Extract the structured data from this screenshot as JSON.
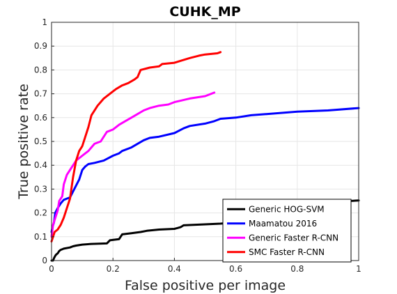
{
  "chart_data": {
    "type": "line",
    "title": "CUHK_MP",
    "xlabel": "False positive per image",
    "ylabel": "True positive rate",
    "xlim": [
      0,
      1
    ],
    "ylim": [
      0,
      1
    ],
    "xticks": [
      0,
      0.2,
      0.4,
      0.6,
      0.8,
      1
    ],
    "xtick_labels": [
      "0",
      "0.2",
      "0.4",
      "0.6",
      "0.8",
      "1"
    ],
    "yticks": [
      0,
      0.1,
      0.2,
      0.3,
      0.4,
      0.5,
      0.6,
      0.7,
      0.8,
      0.9,
      1
    ],
    "ytick_labels": [
      "0",
      "0.1",
      "0.2",
      "0.3",
      "0.4",
      "0.5",
      "0.6",
      "0.7",
      "0.8",
      "0.9",
      "1"
    ],
    "grid": true,
    "legend_position": "bottom-right",
    "series": [
      {
        "name": "Generic HOG-SVM",
        "color": "#000000",
        "points": [
          [
            0,
            0
          ],
          [
            0.005,
            0
          ],
          [
            0.008,
            0.01
          ],
          [
            0.012,
            0.02
          ],
          [
            0.015,
            0.025
          ],
          [
            0.02,
            0.03
          ],
          [
            0.025,
            0.04
          ],
          [
            0.03,
            0.045
          ],
          [
            0.04,
            0.05
          ],
          [
            0.06,
            0.055
          ],
          [
            0.07,
            0.06
          ],
          [
            0.08,
            0.063
          ],
          [
            0.1,
            0.067
          ],
          [
            0.13,
            0.07
          ],
          [
            0.18,
            0.072
          ],
          [
            0.19,
            0.085
          ],
          [
            0.22,
            0.09
          ],
          [
            0.23,
            0.11
          ],
          [
            0.26,
            0.115
          ],
          [
            0.29,
            0.12
          ],
          [
            0.31,
            0.125
          ],
          [
            0.35,
            0.13
          ],
          [
            0.4,
            0.133
          ],
          [
            0.42,
            0.14
          ],
          [
            0.43,
            0.148
          ],
          [
            0.5,
            0.152
          ],
          [
            0.55,
            0.155
          ],
          [
            0.6,
            0.16
          ],
          [
            0.7,
            0.17
          ],
          [
            0.8,
            0.2
          ],
          [
            0.85,
            0.21
          ],
          [
            0.9,
            0.22
          ],
          [
            0.94,
            0.24
          ],
          [
            0.97,
            0.25
          ],
          [
            1,
            0.252
          ]
        ]
      },
      {
        "name": "Maamatou 2016",
        "color": "#0000ff",
        "points": [
          [
            0,
            0.12
          ],
          [
            0.003,
            0.14
          ],
          [
            0.008,
            0.16
          ],
          [
            0.012,
            0.2
          ],
          [
            0.02,
            0.22
          ],
          [
            0.03,
            0.24
          ],
          [
            0.04,
            0.255
          ],
          [
            0.06,
            0.265
          ],
          [
            0.07,
            0.29
          ],
          [
            0.09,
            0.34
          ],
          [
            0.1,
            0.38
          ],
          [
            0.11,
            0.395
          ],
          [
            0.12,
            0.405
          ],
          [
            0.14,
            0.41
          ],
          [
            0.17,
            0.42
          ],
          [
            0.2,
            0.44
          ],
          [
            0.22,
            0.45
          ],
          [
            0.23,
            0.46
          ],
          [
            0.26,
            0.475
          ],
          [
            0.28,
            0.49
          ],
          [
            0.3,
            0.505
          ],
          [
            0.32,
            0.515
          ],
          [
            0.35,
            0.52
          ],
          [
            0.4,
            0.535
          ],
          [
            0.43,
            0.555
          ],
          [
            0.45,
            0.565
          ],
          [
            0.5,
            0.575
          ],
          [
            0.53,
            0.585
          ],
          [
            0.55,
            0.595
          ],
          [
            0.6,
            0.6
          ],
          [
            0.65,
            0.61
          ],
          [
            0.7,
            0.615
          ],
          [
            0.8,
            0.625
          ],
          [
            0.9,
            0.63
          ],
          [
            1,
            0.64
          ]
        ]
      },
      {
        "name": "Generic Faster R-CNN",
        "color": "#ff00ff",
        "points": [
          [
            0,
            0.1
          ],
          [
            0.005,
            0.15
          ],
          [
            0.01,
            0.17
          ],
          [
            0.02,
            0.21
          ],
          [
            0.025,
            0.25
          ],
          [
            0.035,
            0.27
          ],
          [
            0.04,
            0.32
          ],
          [
            0.05,
            0.36
          ],
          [
            0.06,
            0.38
          ],
          [
            0.07,
            0.4
          ],
          [
            0.08,
            0.42
          ],
          [
            0.1,
            0.44
          ],
          [
            0.12,
            0.46
          ],
          [
            0.14,
            0.49
          ],
          [
            0.16,
            0.5
          ],
          [
            0.18,
            0.54
          ],
          [
            0.2,
            0.55
          ],
          [
            0.22,
            0.57
          ],
          [
            0.24,
            0.585
          ],
          [
            0.26,
            0.6
          ],
          [
            0.28,
            0.615
          ],
          [
            0.3,
            0.63
          ],
          [
            0.32,
            0.64
          ],
          [
            0.35,
            0.65
          ],
          [
            0.38,
            0.655
          ],
          [
            0.4,
            0.665
          ],
          [
            0.45,
            0.68
          ],
          [
            0.5,
            0.69
          ],
          [
            0.53,
            0.705
          ]
        ]
      },
      {
        "name": "SMC Faster R-CNN",
        "color": "#ff0000",
        "points": [
          [
            0,
            0.08
          ],
          [
            0.005,
            0.1
          ],
          [
            0.01,
            0.12
          ],
          [
            0.02,
            0.13
          ],
          [
            0.03,
            0.15
          ],
          [
            0.04,
            0.18
          ],
          [
            0.05,
            0.22
          ],
          [
            0.06,
            0.26
          ],
          [
            0.07,
            0.35
          ],
          [
            0.08,
            0.42
          ],
          [
            0.09,
            0.46
          ],
          [
            0.1,
            0.48
          ],
          [
            0.11,
            0.52
          ],
          [
            0.12,
            0.56
          ],
          [
            0.13,
            0.61
          ],
          [
            0.15,
            0.65
          ],
          [
            0.17,
            0.68
          ],
          [
            0.19,
            0.7
          ],
          [
            0.21,
            0.72
          ],
          [
            0.23,
            0.735
          ],
          [
            0.25,
            0.745
          ],
          [
            0.27,
            0.76
          ],
          [
            0.28,
            0.77
          ],
          [
            0.29,
            0.8
          ],
          [
            0.32,
            0.81
          ],
          [
            0.35,
            0.815
          ],
          [
            0.36,
            0.825
          ],
          [
            0.4,
            0.83
          ],
          [
            0.45,
            0.85
          ],
          [
            0.48,
            0.86
          ],
          [
            0.5,
            0.865
          ],
          [
            0.54,
            0.87
          ],
          [
            0.55,
            0.875
          ]
        ]
      }
    ]
  }
}
